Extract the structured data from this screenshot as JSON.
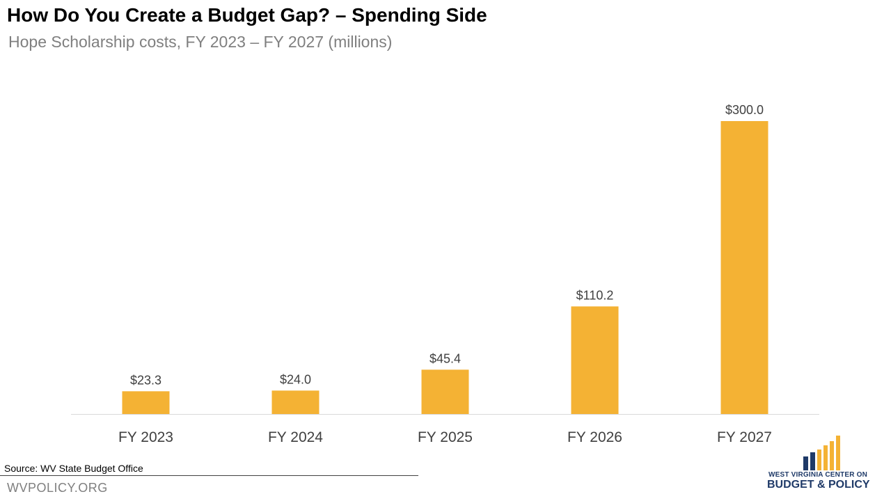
{
  "header": {
    "title": "How Do You Create a Budget Gap? – Spending Side",
    "subtitle": "Hope Scholarship costs, FY 2023 – FY 2027 (millions)"
  },
  "chart_data": {
    "type": "bar",
    "categories": [
      "FY 2023",
      "FY 2024",
      "FY 2025",
      "FY 2026",
      "FY 2027"
    ],
    "values": [
      23.3,
      24.0,
      45.4,
      110.2,
      300.0
    ],
    "data_labels": [
      "$23.3",
      "$24.0",
      "$45.4",
      "$110.2",
      "$300.0"
    ],
    "title": "How Do You Create a Budget Gap? – Spending Side",
    "subtitle": "Hope Scholarship costs, FY 2023 – FY 2027 (millions)",
    "xlabel": "",
    "ylabel": "",
    "ylim": [
      0,
      300
    ],
    "grid": false,
    "legend": "none",
    "bar_color": "#F4B234"
  },
  "footer": {
    "source": "Source: WV State Budget Office",
    "website": "WVPOLICY.ORG"
  },
  "logo": {
    "line1": "WEST VIRGINIA CENTER ON",
    "line2": "BUDGET & POLICY",
    "colors": {
      "navy": "#1f3a68",
      "gold": "#F4B234"
    }
  }
}
